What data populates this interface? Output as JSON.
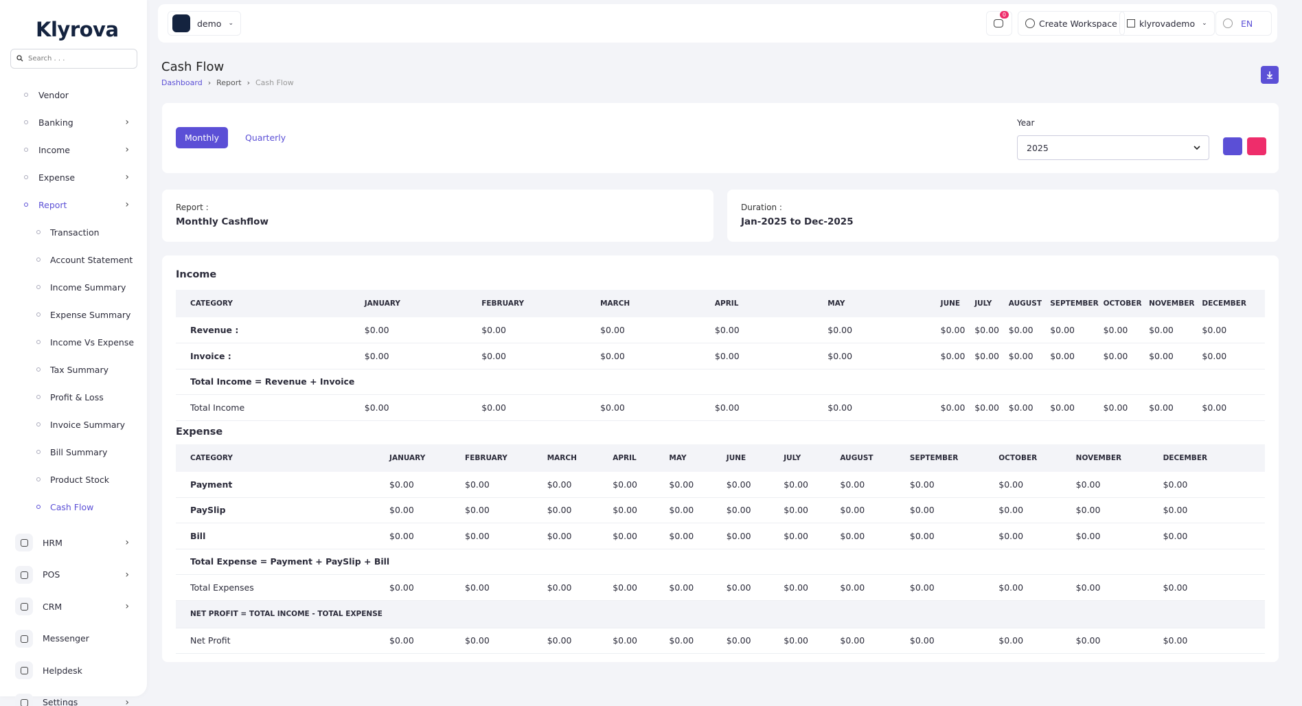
{
  "brand": "Klyrova",
  "search_placeholder": "Search . . .",
  "sidebar": {
    "items": [
      "Vendor",
      "Banking",
      "Income",
      "Expense",
      "Report"
    ],
    "expandable": [
      false,
      true,
      true,
      true,
      true
    ],
    "active": 4,
    "sub_items": [
      "Transaction",
      "Account Statement",
      "Income Summary",
      "Expense Summary",
      "Income Vs Expense",
      "Tax Summary",
      "Profit & Loss",
      "Invoice Summary",
      "Bill Summary",
      "Product Stock",
      "Cash Flow"
    ],
    "active_sub": 10,
    "modules": [
      "HRM",
      "POS",
      "CRM",
      "Messenger",
      "Helpdesk",
      "Settings"
    ],
    "modules_expandable": [
      true,
      true,
      true,
      false,
      false,
      true
    ]
  },
  "topbar": {
    "workspace": "demo",
    "notifications": "0",
    "create_workspace": "Create Workspace",
    "user": "klyrovademo",
    "language": "EN"
  },
  "header": {
    "title": "Cash Flow",
    "breadcrumb": [
      "Dashboard",
      "Report",
      "Cash Flow"
    ]
  },
  "filter": {
    "tabs": [
      "Monthly",
      "Quarterly"
    ],
    "active_tab": 0,
    "year_label": "Year",
    "year": "2025"
  },
  "info": [
    {
      "label": "Report :",
      "value": "Monthly Cashflow"
    },
    {
      "label": "Duration :",
      "value": "Jan-2025 to Dec-2025"
    }
  ],
  "income": {
    "title": "Income",
    "columns": [
      "CATEGORY",
      "JANUARY",
      "FEBRUARY",
      "MARCH",
      "APRIL",
      "MAY",
      "JUNE",
      "JULY",
      "AUGUST",
      "SEPTEMBER",
      "OCTOBER",
      "NOVEMBER",
      "DECEMBER"
    ],
    "rows": [
      {
        "label": "Revenue :",
        "bold": true,
        "values": [
          "$0.00",
          "$0.00",
          "$0.00",
          "$0.00",
          "$0.00",
          "$0.00",
          "$0.00",
          "$0.00",
          "$0.00",
          "$0.00",
          "$0.00",
          "$0.00"
        ]
      },
      {
        "label": "Invoice :",
        "bold": true,
        "values": [
          "$0.00",
          "$0.00",
          "$0.00",
          "$0.00",
          "$0.00",
          "$0.00",
          "$0.00",
          "$0.00",
          "$0.00",
          "$0.00",
          "$0.00",
          "$0.00"
        ]
      },
      {
        "label": "Total Income = Revenue + Invoice",
        "bold": true
      },
      {
        "label": "Total Income",
        "bold": false,
        "values": [
          "$0.00",
          "$0.00",
          "$0.00",
          "$0.00",
          "$0.00",
          "$0.00",
          "$0.00",
          "$0.00",
          "$0.00",
          "$0.00",
          "$0.00",
          "$0.00"
        ]
      }
    ]
  },
  "expense": {
    "title": "Expense",
    "columns": [
      "CATEGORY",
      "JANUARY",
      "FEBRUARY",
      "MARCH",
      "APRIL",
      "MAY",
      "JUNE",
      "JULY",
      "AUGUST",
      "SEPTEMBER",
      "OCTOBER",
      "NOVEMBER",
      "DECEMBER"
    ],
    "rows": [
      {
        "label": "Payment",
        "bold": true,
        "values": [
          "$0.00",
          "$0.00",
          "$0.00",
          "$0.00",
          "$0.00",
          "$0.00",
          "$0.00",
          "$0.00",
          "$0.00",
          "$0.00",
          "$0.00",
          "$0.00"
        ]
      },
      {
        "label": "PaySlip",
        "bold": true,
        "values": [
          "$0.00",
          "$0.00",
          "$0.00",
          "$0.00",
          "$0.00",
          "$0.00",
          "$0.00",
          "$0.00",
          "$0.00",
          "$0.00",
          "$0.00",
          "$0.00"
        ]
      },
      {
        "label": "Bill",
        "bold": true,
        "values": [
          "$0.00",
          "$0.00",
          "$0.00",
          "$0.00",
          "$0.00",
          "$0.00",
          "$0.00",
          "$0.00",
          "$0.00",
          "$0.00",
          "$0.00",
          "$0.00"
        ]
      },
      {
        "label": "Total Expense = Payment + PaySlip + Bill",
        "bold": true
      },
      {
        "label": "Total Expenses",
        "bold": false,
        "values": [
          "$0.00",
          "$0.00",
          "$0.00",
          "$0.00",
          "$0.00",
          "$0.00",
          "$0.00",
          "$0.00",
          "$0.00",
          "$0.00",
          "$0.00",
          "$0.00"
        ]
      },
      {
        "label": "NET PROFIT = TOTAL INCOME - TOTAL EXPENSE",
        "bold": true,
        "shaded": true
      },
      {
        "label": "Net Profit",
        "bold": false,
        "values": [
          "$0.00",
          "$0.00",
          "$0.00",
          "$0.00",
          "$0.00",
          "$0.00",
          "$0.00",
          "$0.00",
          "$0.00",
          "$0.00",
          "$0.00",
          "$0.00"
        ]
      }
    ]
  }
}
